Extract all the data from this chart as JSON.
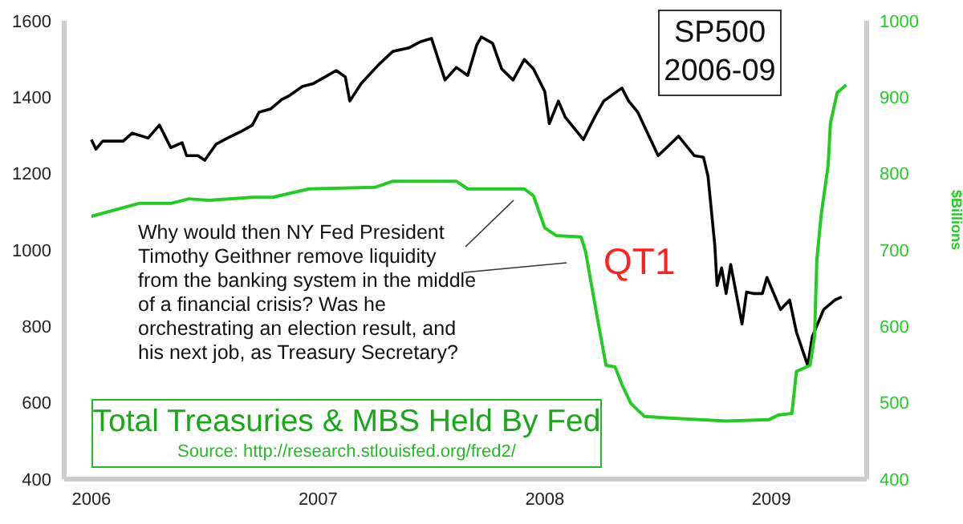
{
  "chart_data": {
    "type": "line",
    "title": "SP500 2006-09",
    "y2label": "$Billions",
    "xlim": [
      2005.88,
      2009.42
    ],
    "xticks": [
      2006,
      2007,
      2008,
      2009
    ],
    "ylim": [
      400,
      1600
    ],
    "yticks": [
      400,
      600,
      800,
      1000,
      1200,
      1400,
      1600
    ],
    "y2lim": [
      400,
      1000
    ],
    "y2ticks": [
      400,
      500,
      600,
      700,
      800,
      900,
      1000
    ],
    "grid": false,
    "legend": false,
    "marker": "none",
    "line_style": "solid",
    "annotations": [
      "Why would then NY Fed President Timothy Geithner remove liquidity from the banking system in the middle of a financial crisis? Was he orchestrating an election result, and his next job, as Treasury Secretary?",
      "QT1",
      "Total Treasuries & MBS Held By Fed",
      "Source: http://research.stlouisfed.org/fred2/"
    ],
    "series": [
      {
        "color": "#000000",
        "x": [
          2006.0,
          2006.02,
          2006.05,
          2006.14,
          2006.18,
          2006.25,
          2006.3,
          2006.35,
          2006.4,
          2006.42,
          2006.47,
          2006.5,
          2006.55,
          2006.6,
          2006.66,
          2006.71,
          2006.74,
          2006.79,
          2006.84,
          2006.87,
          2006.93,
          2006.98,
          2007.03,
          2007.08,
          2007.12,
          2007.14,
          2007.19,
          2007.27,
          2007.33,
          2007.4,
          2007.45,
          2007.5,
          2007.56,
          2007.61,
          2007.66,
          2007.7,
          2007.72,
          2007.77,
          2007.81,
          2007.86,
          2007.91,
          2007.95,
          2008.0,
          2008.02,
          2008.06,
          2008.09,
          2008.17,
          2008.22,
          2008.26,
          2008.34,
          2008.37,
          2008.41,
          2008.5,
          2008.59,
          2008.66,
          2008.7,
          2008.72,
          2008.75,
          2008.76,
          2008.78,
          2008.8,
          2008.82,
          2008.87,
          2008.89,
          2008.92,
          2008.96,
          2008.98,
          2009.04,
          2009.08,
          2009.11,
          2009.16,
          2009.18,
          2009.23,
          2009.28,
          2009.31
        ],
        "values": [
          1289,
          1264,
          1285,
          1285,
          1306,
          1293,
          1327,
          1268,
          1281,
          1247,
          1247,
          1235,
          1277,
          1293,
          1310,
          1327,
          1361,
          1369,
          1394,
          1403,
          1428,
          1436,
          1453,
          1470,
          1453,
          1390,
          1436,
          1487,
          1520,
          1529,
          1545,
          1554,
          1445,
          1478,
          1457,
          1537,
          1558,
          1541,
          1474,
          1445,
          1499,
          1474,
          1415,
          1331,
          1390,
          1348,
          1289,
          1348,
          1390,
          1424,
          1390,
          1361,
          1247,
          1298,
          1247,
          1243,
          1193,
          1012,
          907,
          953,
          886,
          962,
          806,
          890,
          886,
          886,
          928,
          844,
          869,
          785,
          697,
          773,
          844,
          869,
          877
        ]
      },
      {
        "color": "#22cc22",
        "axis": "y2",
        "x": [
          2006.0,
          2006.21,
          2006.35,
          2006.43,
          2006.52,
          2006.71,
          2006.8,
          2006.96,
          2007.25,
          2007.33,
          2007.61,
          2007.66,
          2007.91,
          2007.95,
          2008.0,
          2008.05,
          2008.16,
          2008.18,
          2008.19,
          2008.23,
          2008.27,
          2008.31,
          2008.34,
          2008.38,
          2008.44,
          2008.55,
          2008.8,
          2008.99,
          2009.03,
          2009.09,
          2009.11,
          2009.17,
          2009.19,
          2009.2,
          2009.22,
          2009.25,
          2009.26,
          2009.29,
          2009.33
        ],
        "values": [
          744,
          761,
          761,
          767,
          765,
          769,
          769,
          780,
          782,
          790,
          790,
          780,
          780,
          771,
          729,
          719,
          717,
          698,
          681,
          614,
          549,
          547,
          524,
          499,
          482,
          480,
          476,
          478,
          484,
          486,
          541,
          549,
          587,
          687,
          748,
          811,
          866,
          906,
          916
        ]
      }
    ]
  }
}
